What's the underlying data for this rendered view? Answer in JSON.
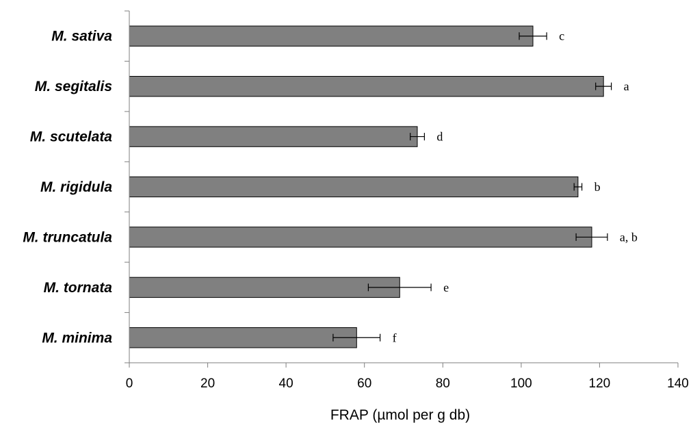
{
  "chart_data": {
    "type": "bar",
    "orientation": "horizontal",
    "categories": [
      "M. sativa",
      "M. segitalis",
      "M. scutelata",
      "M. rigidula",
      "M. truncatula",
      "M. tornata",
      "M. minima"
    ],
    "values": [
      103,
      121,
      73.5,
      114.5,
      118,
      69,
      58
    ],
    "errors": [
      3.5,
      2,
      1.8,
      1,
      4,
      8,
      6
    ],
    "significance": [
      "c",
      "a",
      "d",
      "b",
      "a, b",
      "e",
      "f"
    ],
    "xlabel": "FRAP (µmol per g db)",
    "ylabel": "",
    "xlim": [
      0,
      140
    ],
    "xticks": [
      0,
      20,
      40,
      60,
      80,
      100,
      120,
      140
    ],
    "grid": false,
    "legend": "none",
    "bar_color": "#808080"
  }
}
